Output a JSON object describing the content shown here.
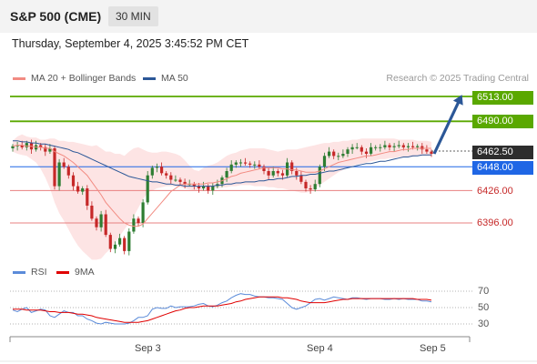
{
  "header": {
    "title": "S&P 500 (CME)",
    "timeframe": "30 MIN"
  },
  "datetime": "Thursday, September 4, 2025 3:45:52 PM CET",
  "legend_main": [
    {
      "label": "MA 20 + Bollinger Bands",
      "color": "#f28b82"
    },
    {
      "label": "MA 50",
      "color": "#2b5797"
    }
  ],
  "credit": "Research © 2025 Trading Central",
  "legend_rsi": [
    {
      "label": "RSI",
      "color": "#5b8bd9"
    },
    {
      "label": "9MA",
      "color": "#e00000"
    }
  ],
  "colors": {
    "up": "#2e7d32",
    "down": "#c62828",
    "resistance": "#5aa800",
    "support_line": "#e88080",
    "pivot": "#1f66e5",
    "current": "#2d2d2d",
    "band_fill": "#fde4e4",
    "arrow": "#2b5797"
  },
  "chart_data": {
    "type": "candlestick",
    "price_range": [
      6360,
      6530
    ],
    "x_ticks": [
      "Sep 3",
      "Sep 4",
      "Sep 5"
    ],
    "levels": [
      {
        "value": 6513.0,
        "label": "6513.00",
        "kind": "resistance"
      },
      {
        "value": 6490.0,
        "label": "6490.00",
        "kind": "resistance"
      },
      {
        "value": 6462.5,
        "label": "6462.50",
        "kind": "current"
      },
      {
        "value": 6448.0,
        "label": "6448.00",
        "kind": "pivot"
      },
      {
        "value": 6426.0,
        "label": "6426.00",
        "kind": "support"
      },
      {
        "value": 6396.0,
        "label": "6396.00",
        "kind": "support"
      }
    ],
    "arrow": {
      "from": 6460,
      "to": 6510
    },
    "closes": [
      6467,
      6468,
      6466,
      6470,
      6464,
      6468,
      6466,
      6462,
      6465,
      6430,
      6452,
      6448,
      6440,
      6430,
      6425,
      6428,
      6412,
      6400,
      6392,
      6404,
      6385,
      6372,
      6376,
      6382,
      6370,
      6388,
      6400,
      6396,
      6415,
      6440,
      6447,
      6448,
      6442,
      6440,
      6436,
      6436,
      6434,
      6432,
      6432,
      6430,
      6428,
      6430,
      6426,
      6430,
      6432,
      6438,
      6444,
      6450,
      6452,
      6452,
      6451,
      6450,
      6450,
      6448,
      6444,
      6440,
      6444,
      6442,
      6440,
      6452,
      6444,
      6440,
      6434,
      6428,
      6427,
      6432,
      6448,
      6458,
      6462,
      6458,
      6458,
      6460,
      6464,
      6466,
      6466,
      6462,
      6460,
      6466,
      6466,
      6466,
      6468,
      6466,
      6467,
      6468,
      6466,
      6467,
      6466,
      6467,
      6464,
      6462,
      6460
    ],
    "upper_band": [
      6472,
      6476,
      6478,
      6476,
      6475,
      6475,
      6473,
      6473,
      6474,
      6474,
      6472,
      6472,
      6471,
      6471,
      6470,
      6469,
      6468,
      6467,
      6468,
      6465,
      6462,
      6462,
      6460,
      6460,
      6458,
      6462,
      6465,
      6466,
      6464,
      6462,
      6461,
      6461,
      6462,
      6462,
      6461,
      6460,
      6458,
      6454,
      6449,
      6445,
      6444,
      6447,
      6449,
      6450,
      6452,
      6455,
      6458,
      6460,
      6461,
      6463,
      6464,
      6465,
      6465,
      6465,
      6465,
      6464,
      6463,
      6462,
      6463,
      6464,
      6464,
      6464,
      6465,
      6466,
      6467,
      6468,
      6469,
      6470,
      6470,
      6471,
      6471,
      6472,
      6472,
      6473,
      6473,
      6474,
      6474,
      6474,
      6474,
      6474,
      6474,
      6474,
      6474,
      6473,
      6473,
      6473,
      6473,
      6472,
      6472,
      6472,
      6471
    ],
    "ma20": [
      6467,
      6468,
      6468,
      6467,
      6467,
      6466,
      6466,
      6465,
      6465,
      6462,
      6460,
      6458,
      6455,
      6452,
      6448,
      6444,
      6440,
      6434,
      6428,
      6422,
      6415,
      6410,
      6405,
      6400,
      6396,
      6394,
      6393,
      6393,
      6395,
      6400,
      6405,
      6410,
      6415,
      6420,
      6425,
      6428,
      6431,
      6432,
      6432,
      6432,
      6432,
      6432,
      6433,
      6433,
      6434,
      6435,
      6437,
      6439,
      6440,
      6442,
      6443,
      6444,
      6445,
      6446,
      6447,
      6447,
      6447,
      6447,
      6446,
      6446,
      6445,
      6445,
      6444,
      6443,
      6443,
      6443,
      6444,
      6446,
      6448,
      6450,
      6452,
      6453,
      6454,
      6455,
      6456,
      6457,
      6458,
      6458,
      6459,
      6460,
      6461,
      6462,
      6462,
      6463,
      6464,
      6464,
      6465,
      6465,
      6465,
      6465,
      6465
    ],
    "lower_band": [
      6462,
      6460,
      6459,
      6458,
      6455,
      6452,
      6446,
      6438,
      6428,
      6415,
      6405,
      6398,
      6390,
      6382,
      6375,
      6370,
      6366,
      6362,
      6362,
      6363,
      6368,
      6372,
      6378,
      6384,
      6390,
      6396,
      6402,
      6410,
      6418,
      6424,
      6426,
      6428,
      6429,
      6430,
      6430,
      6430,
      6429,
      6428,
      6427,
      6426,
      6426,
      6426,
      6427,
      6428,
      6428,
      6429,
      6429,
      6430,
      6430,
      6431,
      6431,
      6431,
      6430,
      6430,
      6430,
      6429,
      6429,
      6428,
      6428,
      6427,
      6426,
      6425,
      6424,
      6424,
      6425,
      6428,
      6431,
      6434,
      6437,
      6440,
      6443,
      6445,
      6447,
      6449,
      6450,
      6451,
      6452,
      6453,
      6454,
      6455,
      6455,
      6456,
      6456,
      6457,
      6457,
      6457,
      6457,
      6458,
      6458,
      6458,
      6458
    ],
    "ma50": [
      6472,
      6472,
      6471,
      6471,
      6470,
      6470,
      6469,
      6469,
      6468,
      6467,
      6466,
      6465,
      6464,
      6462,
      6461,
      6459,
      6457,
      6455,
      6453,
      6451,
      6449,
      6447,
      6445,
      6443,
      6441,
      6439,
      6438,
      6437,
      6436,
      6435,
      6434,
      6434,
      6433,
      6432,
      6432,
      6431,
      6431,
      6430,
      6430,
      6430,
      6430,
      6430,
      6430,
      6430,
      6431,
      6431,
      6432,
      6432,
      6433,
      6433,
      6434,
      6434,
      6434,
      6435,
      6435,
      6436,
      6436,
      6437,
      6437,
      6438,
      6439,
      6439,
      6440,
      6440,
      6441,
      6441,
      6442,
      6443,
      6444,
      6444,
      6445,
      6446,
      6447,
      6448,
      6449,
      6450,
      6451,
      6451,
      6452,
      6453,
      6453,
      6454,
      6455,
      6456,
      6457,
      6457,
      6458,
      6458,
      6459,
      6459,
      6459
    ],
    "rsi": {
      "ticks": [
        70,
        50,
        30
      ],
      "range": [
        20,
        80
      ],
      "rsi": [
        47,
        45,
        48,
        50,
        44,
        46,
        48,
        47,
        40,
        38,
        42,
        46,
        44,
        44,
        40,
        40,
        36,
        34,
        31,
        30,
        32,
        31,
        30,
        30,
        30,
        31,
        34,
        38,
        38,
        40,
        48,
        50,
        49,
        49,
        52,
        50,
        51,
        51,
        51,
        52,
        54,
        55,
        52,
        51,
        53,
        56,
        58,
        62,
        65,
        67,
        66,
        66,
        64,
        63,
        63,
        62,
        62,
        61,
        60,
        55,
        50,
        48,
        50,
        52,
        56,
        60,
        61,
        59,
        61,
        63,
        62,
        61,
        60,
        62,
        62,
        61,
        60,
        61,
        61,
        61,
        60,
        60,
        61,
        60,
        61,
        60,
        60,
        60,
        58,
        58,
        57
      ],
      "ma9": [
        48,
        48,
        48,
        47,
        47,
        47,
        47,
        46,
        45,
        45,
        44,
        44,
        44,
        43,
        42,
        42,
        41,
        40,
        38,
        37,
        36,
        35,
        34,
        33,
        32,
        32,
        32,
        32,
        33,
        34,
        36,
        38,
        40,
        42,
        44,
        46,
        47,
        49,
        50,
        50,
        51,
        52,
        52,
        52,
        52,
        53,
        54,
        55,
        57,
        58,
        60,
        61,
        62,
        63,
        63,
        63,
        63,
        63,
        62,
        62,
        61,
        60,
        58,
        57,
        56,
        56,
        56,
        56,
        57,
        58,
        59,
        60,
        60,
        61,
        61,
        61,
        61,
        61,
        61,
        61,
        61,
        61,
        61,
        61,
        61,
        61,
        61,
        60,
        60,
        60,
        59
      ]
    }
  }
}
